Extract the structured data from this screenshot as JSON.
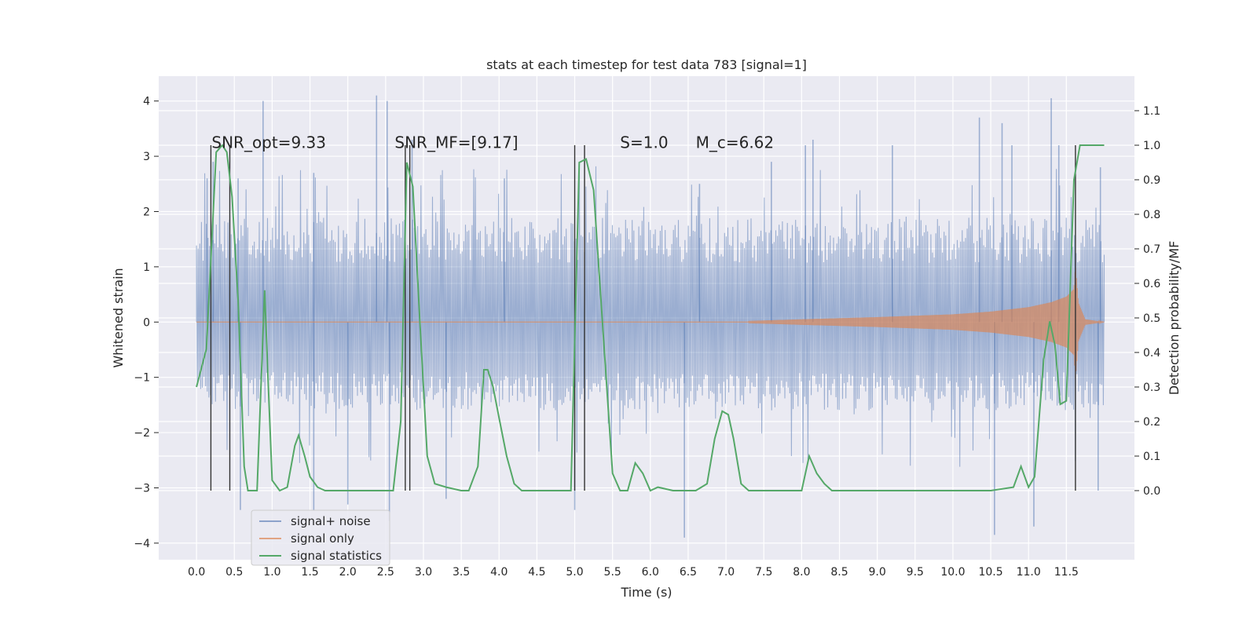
{
  "chart_data": {
    "type": "line",
    "title": "stats at each timestep for test data 783 [signal=1]",
    "xlabel": "Time (s)",
    "ylabel": "Whitened strain",
    "y2label": "Detection probability/MF",
    "xlim": [
      -0.5,
      12.4
    ],
    "ylim": [
      -4.3,
      4.45
    ],
    "y2lim": [
      -0.2,
      1.2
    ],
    "x_ticks": [
      0.0,
      0.5,
      1.0,
      1.5,
      2.0,
      2.5,
      3.0,
      3.5,
      4.0,
      4.5,
      5.0,
      5.5,
      6.0,
      6.5,
      7.0,
      7.5,
      8.0,
      8.5,
      9.0,
      9.5,
      10.0,
      10.5,
      11.0,
      11.5
    ],
    "x_tick_labels": [
      "0.0",
      "0.5",
      "1.0",
      "1.5",
      "2.0",
      "2.5",
      "3.0",
      "3.5",
      "4.0",
      "4.5",
      "5.0",
      "5.5",
      "6.0",
      "6.5",
      "7.0",
      "7.5",
      "8.0",
      "8.5",
      "9.0",
      "9.5",
      "10.0",
      "10.5",
      "11.0",
      "11.5"
    ],
    "y_ticks": [
      -4,
      -3,
      -2,
      -1,
      0,
      1,
      2,
      3,
      4
    ],
    "y_tick_labels": [
      "−4",
      "−3",
      "−2",
      "−1",
      "0",
      "1",
      "2",
      "3",
      "4"
    ],
    "y2_ticks": [
      0.0,
      0.1,
      0.2,
      0.3,
      0.4,
      0.5,
      0.6,
      0.7,
      0.8,
      0.9,
      1.0,
      1.1
    ],
    "y2_tick_labels": [
      "0.0",
      "0.1",
      "0.2",
      "0.3",
      "0.4",
      "0.5",
      "0.6",
      "0.7",
      "0.8",
      "0.9",
      "1.0",
      "1.1"
    ],
    "grid": true,
    "legend_position": "lower-left",
    "annotations": [
      {
        "text": "SNR_opt=9.33",
        "x": 0.2
      },
      {
        "text": "SNR_MF=[9.17]",
        "x": 2.62
      },
      {
        "text": "S=1.0",
        "x": 5.6
      },
      {
        "text": "M_c=6.62",
        "x": 6.6
      }
    ],
    "annotation_y": 3.15,
    "series": [
      {
        "name": "signal+ noise",
        "color": "#4c72b0",
        "axis": "left",
        "x_range": [
          0.0,
          12.0
        ],
        "envelope_upper": 1.95,
        "envelope_lower": -1.65,
        "peaks": [
          {
            "x": 0.14,
            "y": 2.6
          },
          {
            "x": 0.22,
            "y": 2.9
          },
          {
            "x": 0.55,
            "y": 2.6
          },
          {
            "x": 0.88,
            "y": 4.0
          },
          {
            "x": 1.55,
            "y": 2.7
          },
          {
            "x": 2.38,
            "y": 4.1
          },
          {
            "x": 2.52,
            "y": 4.0
          },
          {
            "x": 2.85,
            "y": 3.3
          },
          {
            "x": 4.07,
            "y": 2.6
          },
          {
            "x": 6.65,
            "y": 2.5
          },
          {
            "x": 7.6,
            "y": 2.9
          },
          {
            "x": 8.05,
            "y": 3.2
          },
          {
            "x": 8.15,
            "y": 3.3
          },
          {
            "x": 9.2,
            "y": 3.2
          },
          {
            "x": 10.35,
            "y": 3.7
          },
          {
            "x": 10.65,
            "y": 3.6
          },
          {
            "x": 10.78,
            "y": 3.2
          },
          {
            "x": 11.3,
            "y": 4.05
          },
          {
            "x": 11.4,
            "y": 3.2
          },
          {
            "x": 11.95,
            "y": 2.8
          }
        ],
        "troughs": [
          {
            "x": 0.58,
            "y": -3.4
          },
          {
            "x": 1.55,
            "y": -3.4
          },
          {
            "x": 2.0,
            "y": -3.3
          },
          {
            "x": 2.55,
            "y": -3.6
          },
          {
            "x": 3.3,
            "y": -3.2
          },
          {
            "x": 5.0,
            "y": -3.4
          },
          {
            "x": 6.45,
            "y": -3.9
          },
          {
            "x": 10.55,
            "y": -3.85
          },
          {
            "x": 11.07,
            "y": -3.7
          },
          {
            "x": 11.92,
            "y": -3.05
          }
        ]
      },
      {
        "name": "signal only",
        "color": "#dd8452",
        "axis": "left",
        "chirp_start": 7.3,
        "chirp_peak_time": 11.62,
        "chirp_end": 12.0,
        "amplitudes": [
          [
            7.3,
            0.02
          ],
          [
            8.0,
            0.05
          ],
          [
            9.0,
            0.09
          ],
          [
            10.0,
            0.14
          ],
          [
            10.5,
            0.19
          ],
          [
            11.0,
            0.27
          ],
          [
            11.3,
            0.36
          ],
          [
            11.5,
            0.46
          ],
          [
            11.6,
            0.6
          ],
          [
            11.62,
            1.05
          ],
          [
            11.66,
            0.35
          ],
          [
            11.75,
            0.05
          ],
          [
            12.0,
            0.0
          ]
        ]
      },
      {
        "name": "signal statistics",
        "color": "#55a868",
        "axis": "right",
        "x": [
          0.0,
          0.13,
          0.26,
          0.34,
          0.4,
          0.47,
          0.55,
          0.63,
          0.68,
          0.8,
          0.9,
          0.95,
          1.0,
          1.1,
          1.2,
          1.3,
          1.35,
          1.43,
          1.5,
          1.6,
          1.7,
          1.8,
          2.0,
          2.3,
          2.6,
          2.7,
          2.78,
          2.86,
          2.95,
          3.05,
          3.15,
          3.3,
          3.5,
          3.6,
          3.72,
          3.8,
          3.85,
          3.92,
          4.0,
          4.1,
          4.2,
          4.3,
          4.6,
          4.95,
          5.06,
          5.15,
          5.25,
          5.4,
          5.5,
          5.6,
          5.7,
          5.8,
          5.9,
          6.0,
          6.1,
          6.3,
          6.6,
          6.75,
          6.85,
          6.95,
          7.03,
          7.1,
          7.2,
          7.3,
          7.5,
          8.0,
          8.1,
          8.2,
          8.3,
          8.4,
          8.6,
          9.0,
          9.5,
          9.8,
          10.0,
          10.2,
          10.5,
          10.8,
          10.9,
          11.0,
          11.08,
          11.2,
          11.28,
          11.35,
          11.42,
          11.5,
          11.6,
          11.68,
          11.78,
          12.0
        ],
        "y": [
          0.3,
          0.41,
          0.98,
          1.0,
          0.98,
          0.85,
          0.55,
          0.07,
          0.0,
          0.0,
          0.58,
          0.3,
          0.03,
          0.0,
          0.01,
          0.13,
          0.16,
          0.1,
          0.04,
          0.01,
          0.0,
          0.0,
          0.0,
          0.0,
          0.0,
          0.2,
          0.95,
          0.88,
          0.5,
          0.1,
          0.02,
          0.01,
          0.0,
          0.0,
          0.07,
          0.35,
          0.35,
          0.3,
          0.21,
          0.1,
          0.02,
          0.0,
          0.0,
          0.0,
          0.95,
          0.96,
          0.87,
          0.38,
          0.05,
          0.0,
          0.0,
          0.08,
          0.05,
          0.0,
          0.01,
          0.0,
          0.0,
          0.02,
          0.15,
          0.23,
          0.22,
          0.15,
          0.02,
          0.0,
          0.0,
          0.0,
          0.1,
          0.05,
          0.02,
          0.0,
          0.0,
          0.0,
          0.0,
          0.0,
          0.0,
          0.0,
          0.0,
          0.01,
          0.07,
          0.01,
          0.04,
          0.38,
          0.49,
          0.42,
          0.25,
          0.26,
          0.9,
          1.0,
          1.0,
          1.0
        ]
      }
    ],
    "vertical_lines": {
      "color": "#333333",
      "x": [
        0.19,
        0.44,
        2.76,
        2.82,
        5.0,
        5.13,
        11.62
      ],
      "y_range": [
        -3.05,
        3.2
      ]
    }
  }
}
